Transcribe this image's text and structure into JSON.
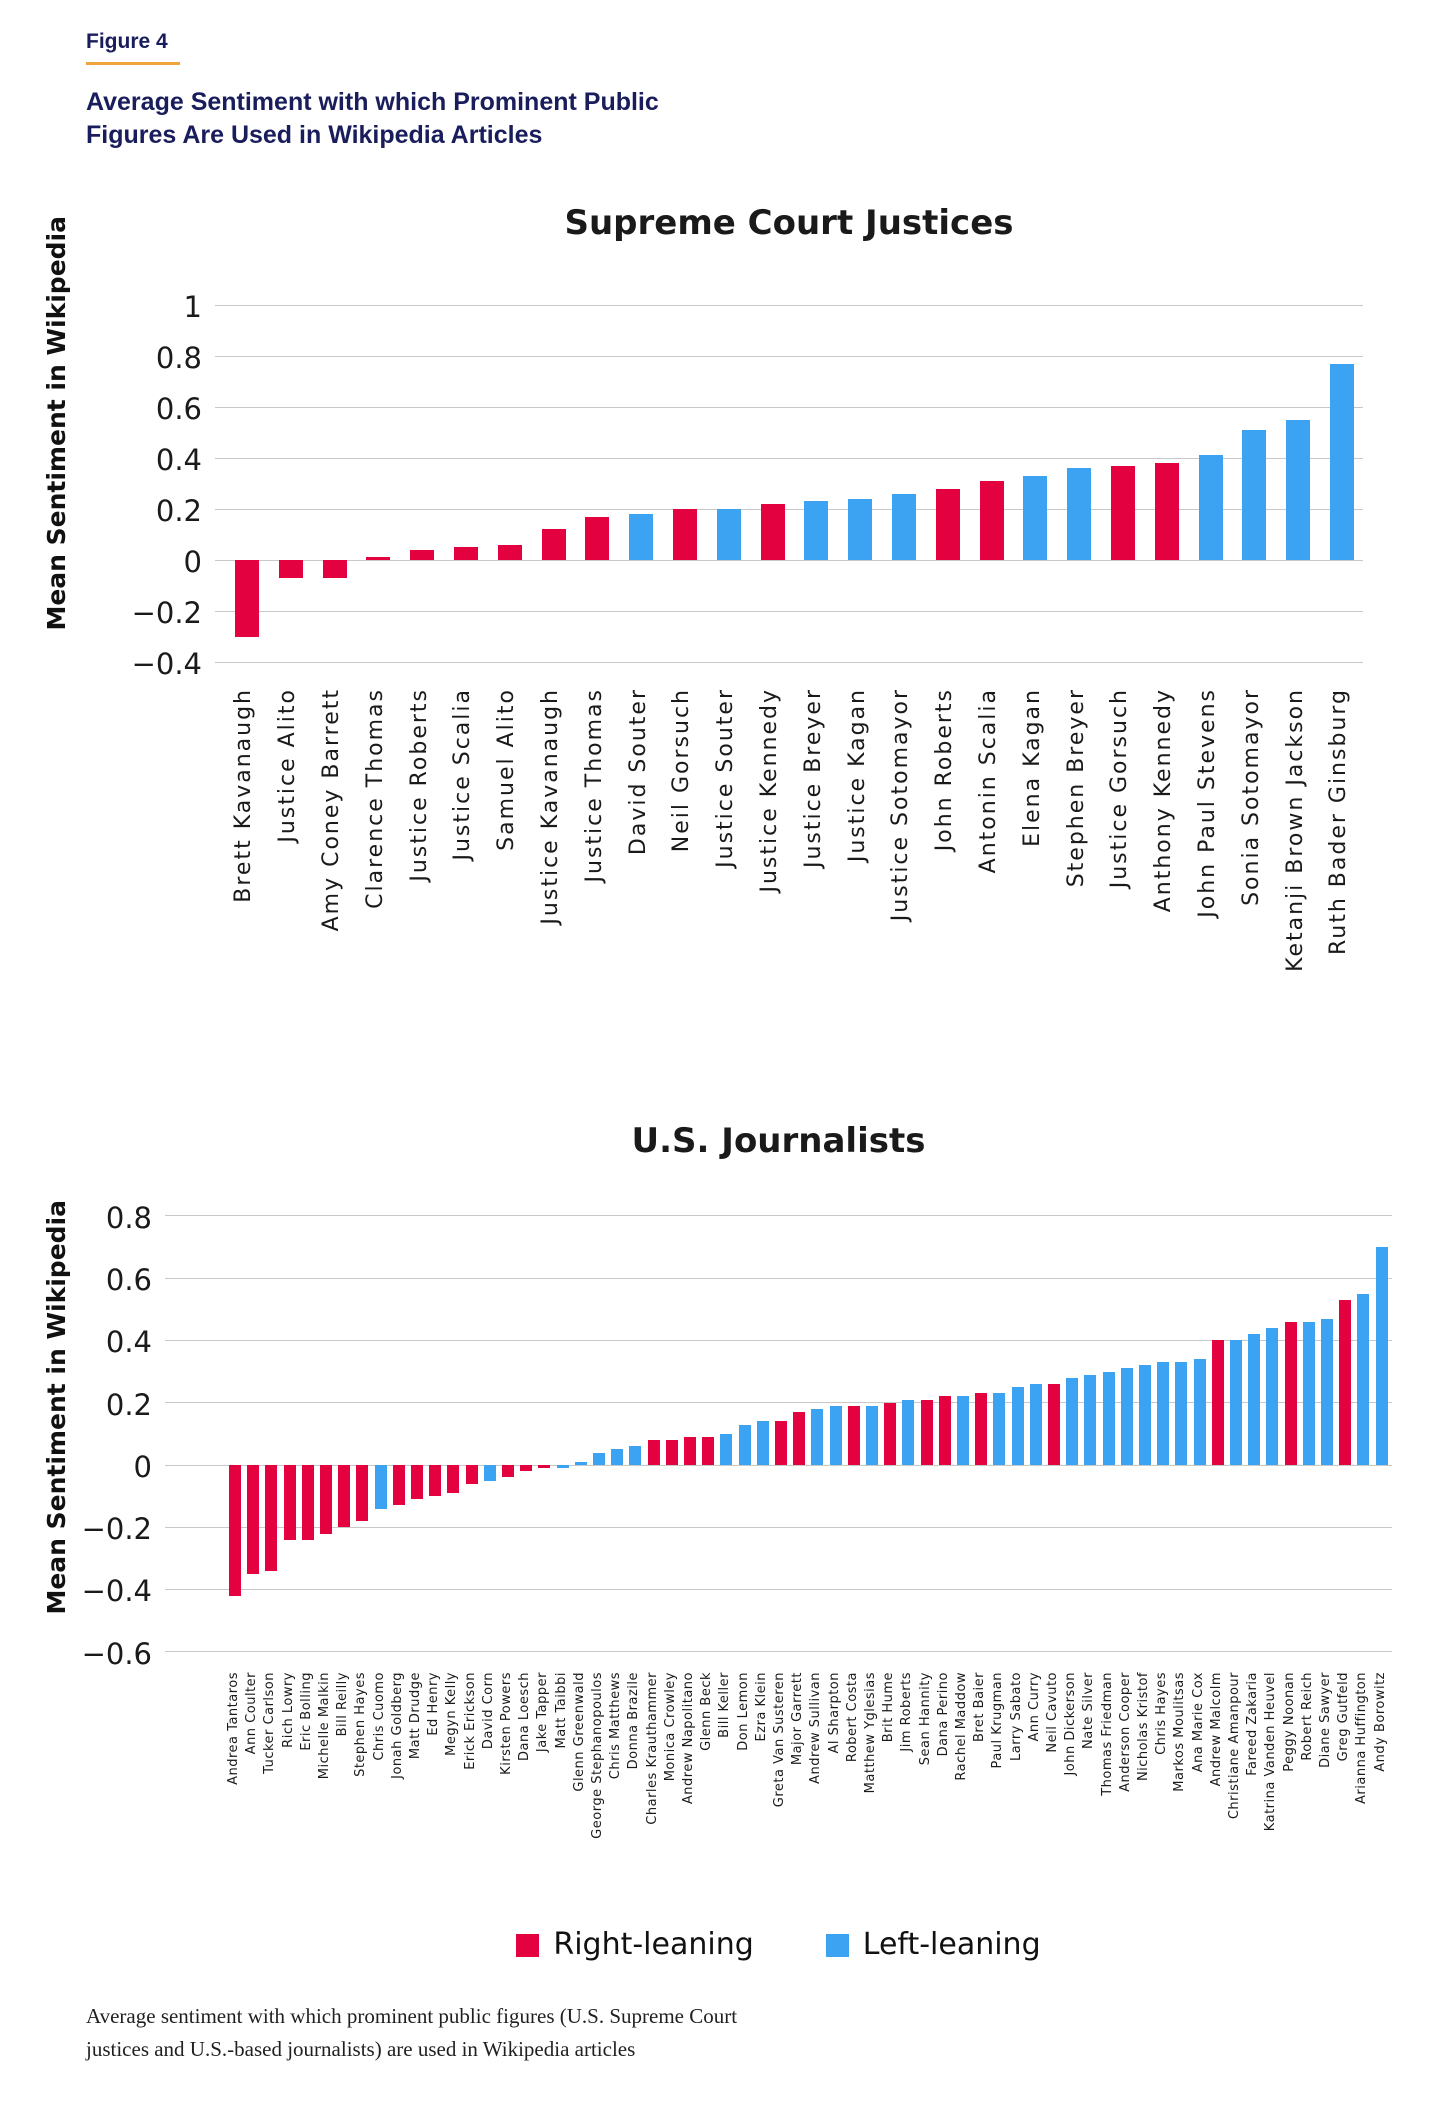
{
  "page": {
    "figure_label": "Figure 4",
    "heading_line1": "Average Sentiment with which Prominent Public",
    "heading_line2": "Figures Are Used in Wikipedia Articles",
    "caption_line1": "Average sentiment with which prominent public figures (U.S. Supreme Court",
    "caption_line2": "justices and U.S.-based journalists) are used in Wikipedia articles"
  },
  "colors": {
    "right": "#e4013f",
    "left": "#3ba3f2",
    "navy": "#191d5b",
    "orange": "#f0a43b",
    "grid": "#c8c8c8"
  },
  "legend": {
    "right_label": "Right-leaning",
    "left_label": "Left-leaning"
  },
  "chart_data": [
    {
      "type": "bar",
      "title": "Supreme Court Justices",
      "ylabel": "Mean Sentiment in Wikipedia",
      "ylim": [
        -0.45,
        1.06
      ],
      "grid": true,
      "yticks": [
        {
          "v": 1,
          "label": "1"
        },
        {
          "v": 0.8,
          "label": "0.8"
        },
        {
          "v": 0.6,
          "label": "0.6"
        },
        {
          "v": 0.4,
          "label": "0.4"
        },
        {
          "v": 0.2,
          "label": "0.2"
        },
        {
          "v": 0,
          "label": "0"
        },
        {
          "v": -0.2,
          "label": "−0.2"
        },
        {
          "v": -0.4,
          "label": "−0.4"
        }
      ],
      "categories": [
        "Brett Kavanaugh",
        "Justice Alito",
        "Amy Coney Barrett",
        "Clarence Thomas",
        "Justice Roberts",
        "Justice Scalia",
        "Samuel Alito",
        "Justice Kavanaugh",
        "Justice Thomas",
        "David Souter",
        "Neil Gorsuch",
        "Justice Souter",
        "Justice Kennedy",
        "Justice Breyer",
        "Justice Kagan",
        "Justice Sotomayor",
        "John Roberts",
        "Antonin Scalia",
        "Elena Kagan",
        "Stephen Breyer",
        "Justice Gorsuch",
        "Anthony Kennedy",
        "John Paul Stevens",
        "Sonia Sotomayor",
        "Ketanji Brown Jackson",
        "Ruth Bader Ginsburg"
      ],
      "values": [
        -0.3,
        -0.07,
        -0.07,
        0.01,
        0.04,
        0.05,
        0.06,
        0.12,
        0.17,
        0.18,
        0.2,
        0.2,
        0.22,
        0.23,
        0.24,
        0.26,
        0.28,
        0.31,
        0.33,
        0.36,
        0.37,
        0.38,
        0.41,
        0.51,
        0.55,
        0.77
      ],
      "leaning": [
        "R",
        "R",
        "R",
        "R",
        "R",
        "R",
        "R",
        "R",
        "R",
        "L",
        "R",
        "L",
        "R",
        "L",
        "L",
        "L",
        "R",
        "R",
        "L",
        "L",
        "R",
        "R",
        "L",
        "L",
        "L",
        "L"
      ]
    },
    {
      "type": "bar",
      "title": "U.S. Journalists",
      "ylabel": "Mean Sentiment in Wikipedia",
      "ylim": [
        -0.64,
        0.88
      ],
      "grid": true,
      "yticks": [
        {
          "v": 0.8,
          "label": "0.8"
        },
        {
          "v": 0.6,
          "label": "0.6"
        },
        {
          "v": 0.4,
          "label": "0.4"
        },
        {
          "v": 0.2,
          "label": "0.2"
        },
        {
          "v": 0,
          "label": "0"
        },
        {
          "v": -0.2,
          "label": "−0.2"
        },
        {
          "v": -0.4,
          "label": "−0.4"
        },
        {
          "v": -0.6,
          "label": "−0.6"
        }
      ],
      "categories": [
        "Andrea Tantaros",
        "Ann Coulter",
        "Tucker Carlson",
        "Rich Lowry",
        "Eric Bolling",
        "Michelle Malkin",
        "Bill Reilly",
        "Stephen Hayes",
        "Chris Cuomo",
        "Jonah Goldberg",
        "Matt Drudge",
        "Ed Henry",
        "Megyn Kelly",
        "Erick Erickson",
        "David Corn",
        "Kirsten Powers",
        "Dana Loesch",
        "Jake Tapper",
        "Matt Taibbi",
        "Glenn Greenwald",
        "George Stephanopoulos",
        "Chris Matthews",
        "Donna Brazile",
        "Charles Krauthammer",
        "Monica Crowley",
        "Andrew Napolitano",
        "Glenn Beck",
        "Bill Keller",
        "Don Lemon",
        "Ezra Klein",
        "Greta Van Susteren",
        "Major Garrett",
        "Andrew Sullivan",
        "Al Sharpton",
        "Robert Costa",
        "Matthew Yglesias",
        "Brit Hume",
        "Jim Roberts",
        "Sean Hannity",
        "Dana Perino",
        "Rachel Maddow",
        "Bret Baier",
        "Paul Krugman",
        "Larry Sabato",
        "Ann Curry",
        "Neil Cavuto",
        "John Dickerson",
        "Nate Silver",
        "Thomas Friedman",
        "Anderson Cooper",
        "Nicholas Kristof",
        "Chris Hayes",
        "Markos Moulitsas",
        "Ana Marie Cox",
        "Andrew Malcolm",
        "Christiane Amanpour",
        "Fareed Zakaria",
        "Katrina Vanden Heuvel",
        "Peggy Noonan",
        "Robert Reich",
        "Diane Sawyer",
        "Greg Gutfeld",
        "Arianna Huffington",
        "Andy Borowitz"
      ],
      "values": [
        -0.42,
        -0.35,
        -0.34,
        -0.24,
        -0.24,
        -0.22,
        -0.2,
        -0.18,
        -0.14,
        -0.13,
        -0.11,
        -0.1,
        -0.09,
        -0.06,
        -0.05,
        -0.04,
        -0.02,
        -0.01,
        -0.01,
        0.01,
        0.04,
        0.05,
        0.06,
        0.08,
        0.08,
        0.09,
        0.09,
        0.1,
        0.13,
        0.14,
        0.14,
        0.17,
        0.18,
        0.19,
        0.19,
        0.19,
        0.2,
        0.21,
        0.21,
        0.22,
        0.22,
        0.23,
        0.23,
        0.25,
        0.26,
        0.26,
        0.28,
        0.29,
        0.3,
        0.31,
        0.32,
        0.33,
        0.33,
        0.34,
        0.4,
        0.4,
        0.42,
        0.44,
        0.46,
        0.46,
        0.47,
        0.53,
        0.55,
        0.7
      ],
      "leaning": [
        "R",
        "R",
        "R",
        "R",
        "R",
        "R",
        "R",
        "R",
        "L",
        "R",
        "R",
        "R",
        "R",
        "R",
        "L",
        "R",
        "R",
        "R",
        "L",
        "L",
        "L",
        "L",
        "L",
        "R",
        "R",
        "R",
        "R",
        "L",
        "L",
        "L",
        "R",
        "R",
        "L",
        "L",
        "R",
        "L",
        "R",
        "L",
        "R",
        "R",
        "L",
        "R",
        "L",
        "L",
        "L",
        "R",
        "L",
        "L",
        "L",
        "L",
        "L",
        "L",
        "L",
        "L",
        "R",
        "L",
        "L",
        "L",
        "R",
        "L",
        "L",
        "R",
        "L",
        "L"
      ]
    }
  ]
}
